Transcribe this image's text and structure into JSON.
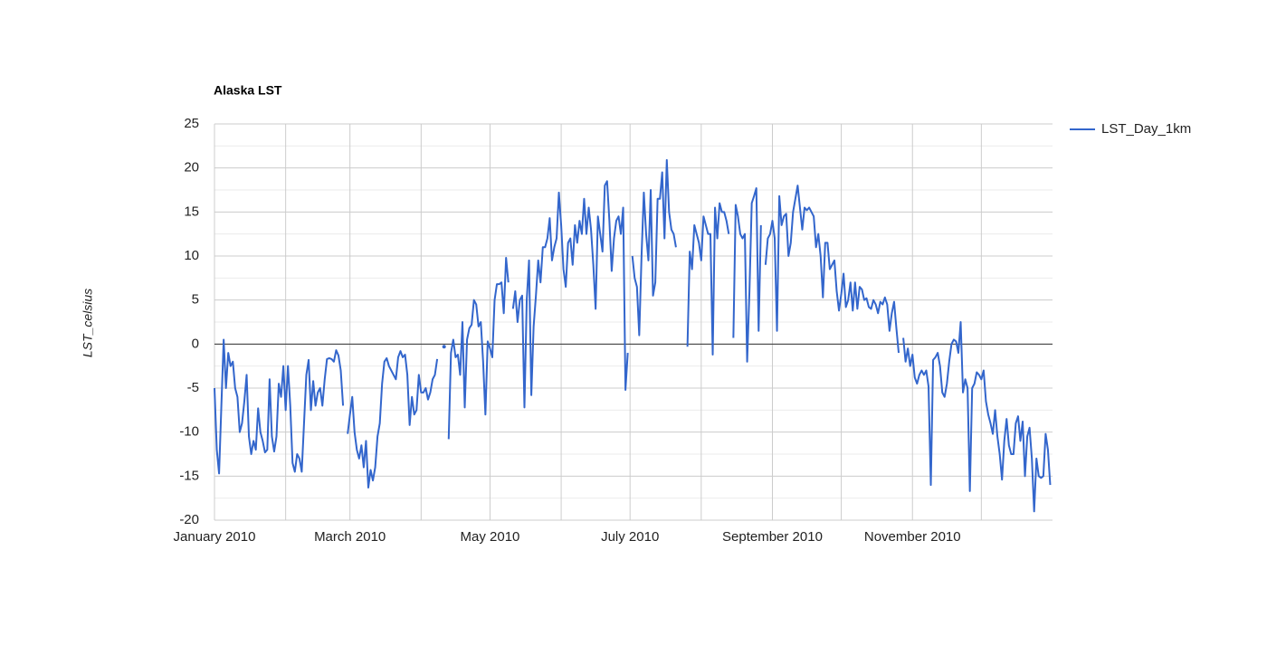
{
  "chart_data": {
    "type": "line",
    "title": "Alaska LST",
    "y_label": "LST_celsius",
    "ylim": [
      -20,
      25
    ],
    "yticks": [
      -20,
      -15,
      -10,
      -5,
      0,
      5,
      10,
      15,
      20,
      25
    ],
    "y_minor_grid": [
      -17.5,
      -12.5,
      -7.5,
      -2.5,
      2.5,
      7.5,
      12.5,
      17.5,
      22.5
    ],
    "xlim": [
      0,
      365
    ],
    "xticks": [
      {
        "value": 0,
        "label": "January 2010"
      },
      {
        "value": 59,
        "label": "March 2010"
      },
      {
        "value": 120,
        "label": "May 2010"
      },
      {
        "value": 181,
        "label": "July 2010"
      },
      {
        "value": 243,
        "label": "September 2010"
      },
      {
        "value": 304,
        "label": "November 2010"
      }
    ],
    "x_minor_grid": [
      31,
      90,
      151,
      212,
      273,
      334
    ],
    "grid": true,
    "legend": "right",
    "x": [
      0,
      1,
      2,
      3,
      4,
      5,
      6,
      7,
      8,
      9,
      10,
      11,
      12,
      13,
      14,
      15,
      16,
      17,
      18,
      19,
      20,
      21,
      22,
      23,
      24,
      25,
      26,
      27,
      28,
      29,
      30,
      31,
      32,
      33,
      34,
      35,
      36,
      37,
      38,
      39,
      40,
      41,
      42,
      43,
      44,
      45,
      46,
      47,
      48,
      49,
      50,
      51,
      52,
      53,
      54,
      55,
      56,
      57,
      58,
      59,
      60,
      61,
      62,
      63,
      64,
      65,
      66,
      67,
      68,
      69,
      70,
      71,
      72,
      73,
      74,
      75,
      76,
      77,
      78,
      79,
      80,
      81,
      82,
      83,
      84,
      85,
      86,
      87,
      88,
      89,
      90,
      91,
      92,
      93,
      94,
      95,
      96,
      97,
      98,
      99,
      100,
      101,
      102,
      103,
      104,
      105,
      106,
      107,
      108,
      109,
      110,
      111,
      112,
      113,
      114,
      115,
      116,
      117,
      118,
      119,
      120,
      121,
      122,
      123,
      124,
      125,
      126,
      127,
      128,
      129,
      130,
      131,
      132,
      133,
      134,
      135,
      136,
      137,
      138,
      139,
      140,
      141,
      142,
      143,
      144,
      145,
      146,
      147,
      148,
      149,
      150,
      151,
      152,
      153,
      154,
      155,
      156,
      157,
      158,
      159,
      160,
      161,
      162,
      163,
      164,
      165,
      166,
      167,
      168,
      169,
      170,
      171,
      172,
      173,
      174,
      175,
      176,
      177,
      178,
      179,
      180,
      181,
      182,
      183,
      184,
      185,
      186,
      187,
      188,
      189,
      190,
      191,
      192,
      193,
      194,
      195,
      196,
      197,
      198,
      199,
      200,
      201,
      202,
      203,
      204,
      205,
      206,
      207,
      208,
      209,
      210,
      211,
      212,
      213,
      214,
      215,
      216,
      217,
      218,
      219,
      220,
      221,
      222,
      223,
      224,
      225,
      226,
      227,
      228,
      229,
      230,
      231,
      232,
      233,
      234,
      235,
      236,
      237,
      238,
      239,
      240,
      241,
      242,
      243,
      244,
      245,
      246,
      247,
      248,
      249,
      250,
      251,
      252,
      253,
      254,
      255,
      256,
      257,
      258,
      259,
      260,
      261,
      262,
      263,
      264,
      265,
      266,
      267,
      268,
      269,
      270,
      271,
      272,
      273,
      274,
      275,
      276,
      277,
      278,
      279,
      280,
      281,
      282,
      283,
      284,
      285,
      286,
      287,
      288,
      289,
      290,
      291,
      292,
      293,
      294,
      295,
      296,
      297,
      298,
      299,
      300,
      301,
      302,
      303,
      304,
      305,
      306,
      307,
      308,
      309,
      310,
      311,
      312,
      313,
      314,
      315,
      316,
      317,
      318,
      319,
      320,
      321,
      322,
      323,
      324,
      325,
      326,
      327,
      328,
      329,
      330,
      331,
      332,
      333,
      334,
      335,
      336,
      337,
      338,
      339,
      340,
      341,
      342,
      343,
      344,
      345,
      346,
      347,
      348,
      349,
      350,
      351,
      352,
      353,
      354,
      355,
      356,
      357,
      358,
      359,
      360,
      361,
      362,
      363,
      364
    ],
    "series": [
      {
        "name": "LST_Day_1km",
        "color": "#3366cc",
        "values": [
          -5,
          -12,
          -14.7,
          -7,
          0.5,
          -5,
          -1,
          -2.5,
          -2,
          -5,
          -6,
          -10,
          -9,
          -6.5,
          -3.5,
          -10.5,
          -12.5,
          -11,
          -12,
          -7.3,
          -10,
          -11,
          -12.3,
          -12,
          -4,
          -10.5,
          -12.2,
          -10.5,
          -4.5,
          -6,
          -2.5,
          -7.5,
          -2.5,
          -7,
          -13.5,
          -14.5,
          -12.5,
          -13,
          -14.5,
          -9,
          -3.5,
          -1.8,
          -7.5,
          -4.2,
          -7,
          -5.5,
          -5,
          -7,
          -4,
          -1.7,
          -1.6,
          -1.7,
          -2,
          -0.7,
          -1.3,
          -3,
          -7,
          null,
          -10.2,
          -8,
          -6,
          -10,
          -12,
          -13,
          -11.5,
          -14,
          -11,
          -16.3,
          -14.3,
          -15.5,
          -14,
          -10.5,
          -9,
          -4.5,
          -2,
          -1.6,
          -2.5,
          -3,
          -3.5,
          -4,
          -1.5,
          -0.8,
          -1.5,
          -1.2,
          -3.5,
          -9.2,
          -6,
          -8,
          -7.5,
          -3.5,
          -5.5,
          -5.5,
          -5,
          -6.3,
          -5.5,
          -4,
          -3.5,
          -1.7,
          null,
          null,
          -0.3,
          null,
          -10.8,
          -1,
          0.5,
          -1.5,
          -1.2,
          -3.5,
          2.5,
          -7.2,
          0.5,
          1.8,
          2.2,
          5,
          4.5,
          2,
          2.5,
          -2,
          -8,
          0.3,
          -0.5,
          -1.5,
          5,
          6.8,
          6.8,
          7,
          3.5,
          9.8,
          7,
          null,
          4,
          6,
          2.5,
          5,
          5.5,
          -7.2,
          5,
          9.5,
          -5.8,
          2,
          5.5,
          9.5,
          7,
          11,
          11,
          12,
          14.3,
          9.5,
          11,
          12,
          17.2,
          13.5,
          8.5,
          6.5,
          11.5,
          12,
          9,
          13.5,
          11.5,
          14,
          12.5,
          16.5,
          12.5,
          15.5,
          13,
          9,
          4,
          14.5,
          12.5,
          10.5,
          18,
          18.5,
          14,
          8.3,
          12,
          14,
          14.5,
          12.5,
          15.5,
          -5.2,
          -1,
          null,
          10,
          7.5,
          6.5,
          1,
          10,
          17.2,
          12.5,
          9.5,
          17.5,
          5.5,
          7,
          16.5,
          16.5,
          19.5,
          12,
          20.9,
          15,
          13,
          12.5,
          11,
          null,
          null,
          null,
          null,
          -0.3,
          10.5,
          8.5,
          13.5,
          12.5,
          11.5,
          9.5,
          14.5,
          13.5,
          12.5,
          12.5,
          -1.2,
          15.5,
          12,
          16,
          15,
          15,
          14,
          12.5,
          null,
          0.7,
          15.8,
          14.5,
          12.5,
          12,
          12.5,
          -2,
          6,
          16,
          16.8,
          17.7,
          1.5,
          13.5,
          null,
          9,
          12,
          12.5,
          14,
          12,
          1.5,
          16.8,
          13.5,
          14.5,
          14.8,
          10,
          11.5,
          15,
          16.5,
          18,
          15.5,
          13,
          15.5,
          15.2,
          15.5,
          15,
          14.5,
          11,
          12.5,
          10,
          5.3,
          11.5,
          11.5,
          8.5,
          9,
          9.5,
          6,
          3.8,
          5.7,
          8,
          4.2,
          5,
          7,
          3.8,
          7,
          4,
          6.5,
          6.2,
          5,
          5.2,
          4.2,
          4,
          5,
          4.5,
          3.5,
          4.8,
          4.5,
          5.3,
          4.5,
          1.5,
          3.5,
          4.8,
          1.8,
          -1,
          null,
          0.7,
          -2,
          -0.5,
          -2.5,
          -1.2,
          -3.8,
          -4.5,
          -3.5,
          -3,
          -3.5,
          -3,
          -4.8,
          -16,
          -1.8,
          -1.5,
          -1,
          -2.5,
          -5.5,
          -6,
          -4.5,
          -2,
          0,
          0.5,
          0.3,
          -1,
          2.5,
          -5.5,
          -4,
          -5,
          -16.7,
          -5,
          -4.5,
          -3.2,
          -3.5,
          -4,
          -3,
          -6.5,
          -8,
          -9,
          -10.2,
          -7.5,
          -10.5,
          -12.5,
          -15.4,
          -11,
          -8.5,
          -11.5,
          -12.5,
          -12.5,
          -9,
          -8.2,
          -11,
          -8.8,
          -15,
          -10.5,
          -9.5,
          -13,
          -19,
          -13,
          -15,
          -15.2,
          -15,
          -10.2,
          -12,
          -16
        ]
      }
    ]
  }
}
